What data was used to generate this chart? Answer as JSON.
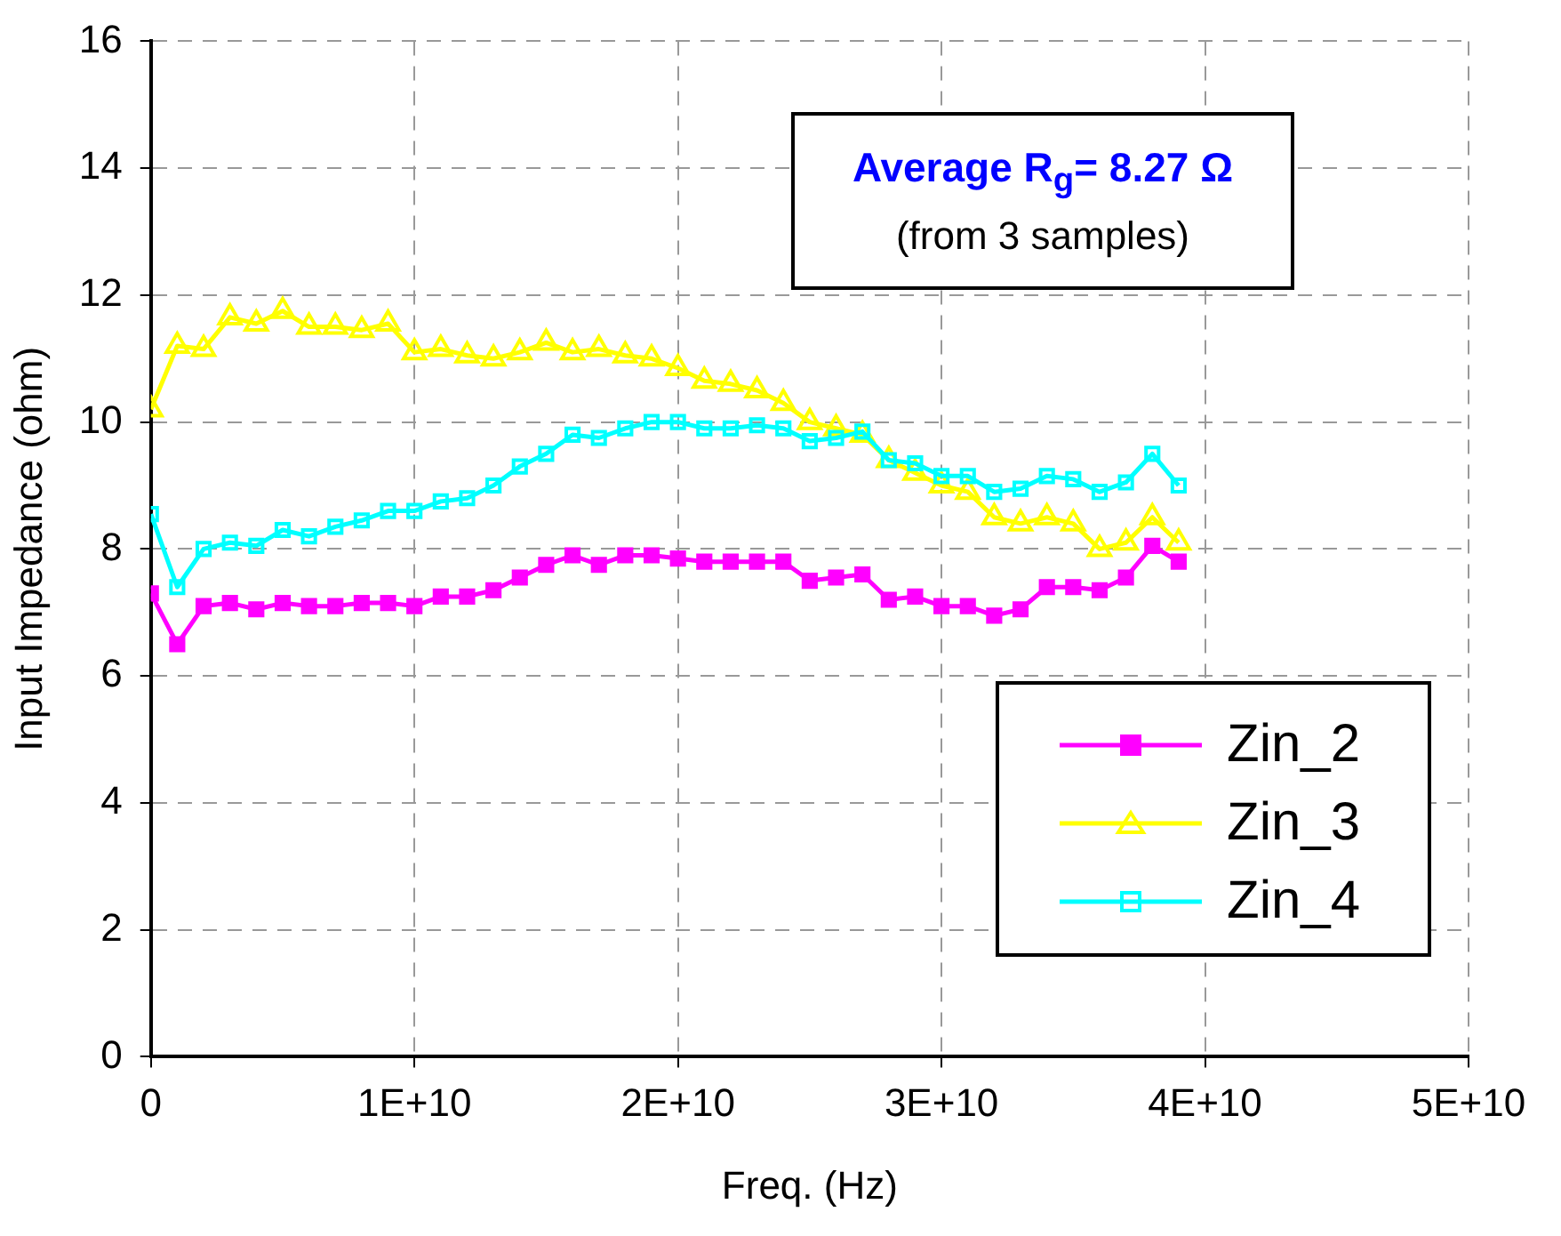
{
  "chart_data": {
    "type": "line",
    "xlabel": "Freq. (Hz)",
    "ylabel": "Input Impedance (ohm)",
    "x": [
      0,
      1000000000.0,
      2000000000.0,
      3000000000.0,
      4000000000.0,
      5000000000.0,
      6000000000.0,
      7000000000.0,
      8000000000.0,
      9000000000.0,
      10000000000.0,
      11000000000.0,
      12000000000.0,
      13000000000.0,
      14000000000.0,
      15000000000.0,
      16000000000.0,
      17000000000.0,
      18000000000.0,
      19000000000.0,
      20000000000.0,
      21000000000.0,
      22000000000.0,
      23000000000.0,
      24000000000.0,
      25000000000.0,
      26000000000.0,
      27000000000.0,
      28000000000.0,
      29000000000.0,
      30000000000.0,
      31000000000.0,
      32000000000.0,
      33000000000.0,
      34000000000.0,
      35000000000.0,
      36000000000.0,
      37000000000.0,
      38000000000.0,
      39000000000.0
    ],
    "series": [
      {
        "name": "Zin_2",
        "color": "#ff00ff",
        "marker": "square",
        "values": [
          7.3,
          6.5,
          7.1,
          7.15,
          7.05,
          7.15,
          7.1,
          7.1,
          7.15,
          7.15,
          7.1,
          7.25,
          7.25,
          7.35,
          7.55,
          7.75,
          7.9,
          7.75,
          7.9,
          7.9,
          7.85,
          7.8,
          7.8,
          7.8,
          7.8,
          7.5,
          7.55,
          7.6,
          7.2,
          7.25,
          7.1,
          7.1,
          6.95,
          7.05,
          7.4,
          7.4,
          7.35,
          7.55,
          8.05,
          7.8
        ]
      },
      {
        "name": "Zin_3",
        "color": "#ffff00",
        "marker": "triangle",
        "values": [
          10.2,
          11.2,
          11.15,
          11.65,
          11.55,
          11.75,
          11.5,
          11.5,
          11.45,
          11.55,
          11.1,
          11.15,
          11.05,
          11.0,
          11.1,
          11.25,
          11.1,
          11.15,
          11.05,
          11.0,
          10.85,
          10.65,
          10.6,
          10.5,
          10.3,
          10.0,
          9.9,
          9.8,
          9.4,
          9.2,
          9.0,
          8.9,
          8.5,
          8.4,
          8.5,
          8.4,
          8.0,
          8.1,
          8.5,
          8.1
        ]
      },
      {
        "name": "Zin_4",
        "color": "#00ffff",
        "marker": "square",
        "values": [
          8.55,
          7.4,
          8.0,
          8.1,
          8.05,
          8.3,
          8.2,
          8.35,
          8.45,
          8.6,
          8.6,
          8.75,
          8.8,
          9.0,
          9.3,
          9.5,
          9.8,
          9.75,
          9.9,
          10.0,
          10.0,
          9.9,
          9.9,
          9.95,
          9.9,
          9.7,
          9.75,
          9.85,
          9.4,
          9.35,
          9.15,
          9.15,
          8.9,
          8.95,
          9.15,
          9.1,
          8.9,
          9.05,
          9.5,
          9.0
        ]
      }
    ],
    "xlim": [
      0,
      50000000000.0
    ],
    "xticks": [
      0,
      {
        "value": 10000000000.0,
        "label": "1E+10"
      },
      {
        "value": 20000000000.0,
        "label": "2E+10"
      },
      {
        "value": 30000000000.0,
        "label": "3E+10"
      },
      {
        "value": 40000000000.0,
        "label": "4E+10"
      },
      {
        "value": 50000000000.0,
        "label": "5E+10"
      }
    ],
    "ylim": [
      0,
      16
    ],
    "yticks": [
      0,
      2,
      4,
      6,
      8,
      10,
      12,
      14,
      16
    ],
    "grid": true,
    "line_style": "solid",
    "legend": "bottom right",
    "annotations": [
      "Average R$_{g}$= 8.27 Ω",
      "(from 3 samples)"
    ]
  }
}
